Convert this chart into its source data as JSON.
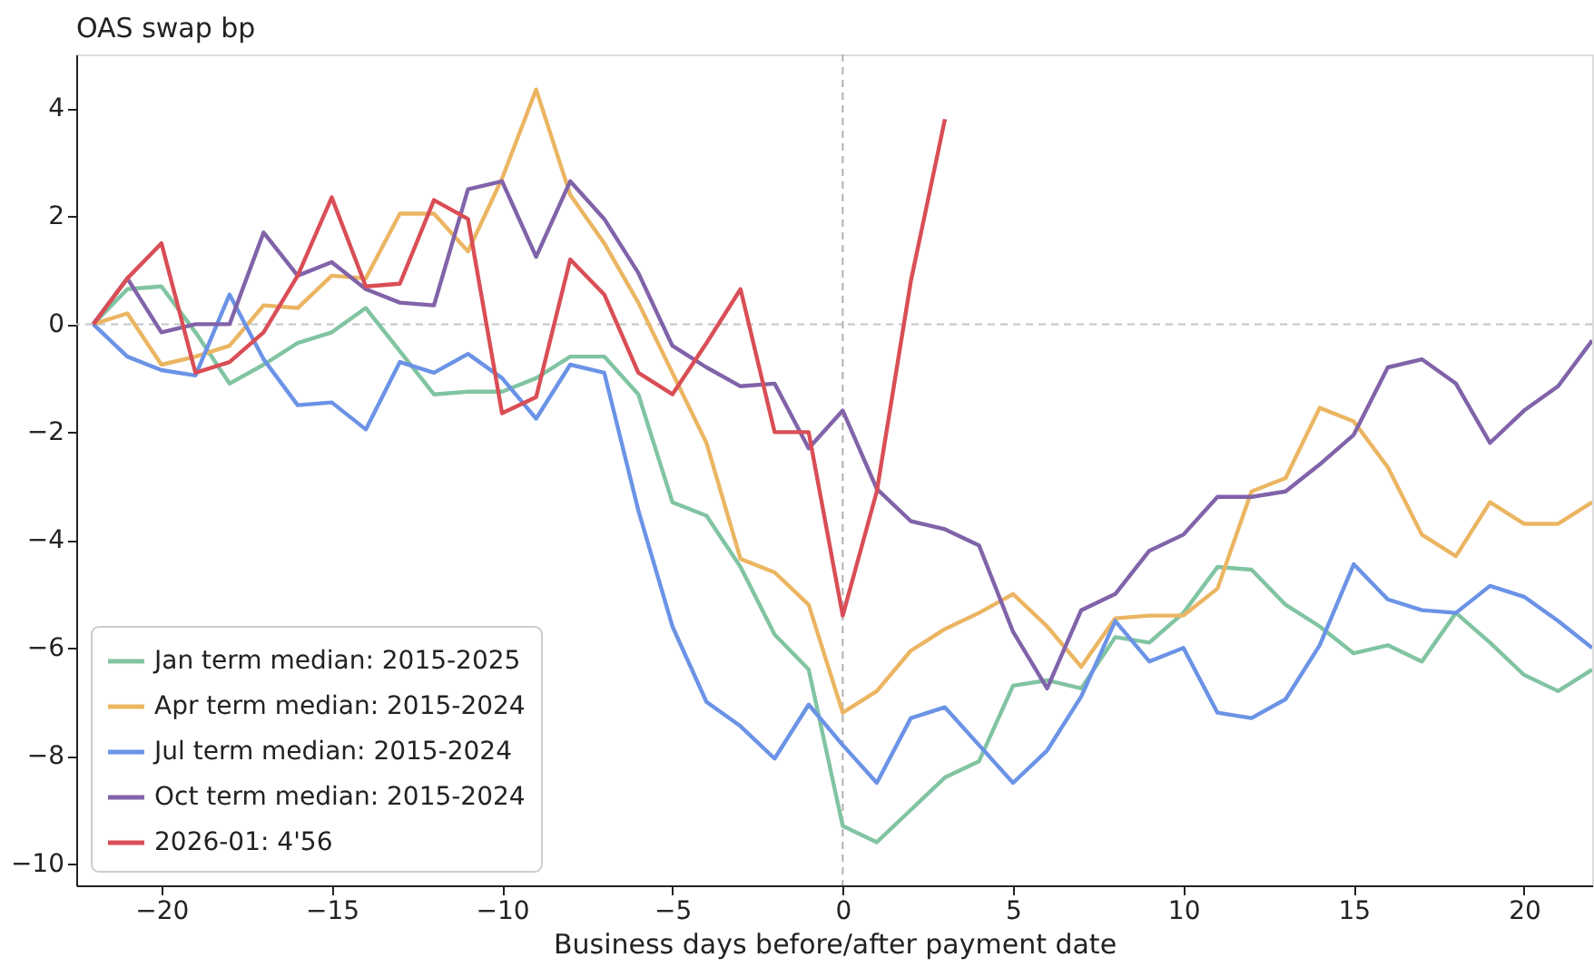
{
  "chart_data": {
    "type": "line",
    "title": "OAS swap bp",
    "xlabel": "Business days before/after payment date",
    "x": [
      -22,
      -21,
      -20,
      -19,
      -18,
      -17,
      -16,
      -15,
      -14,
      -13,
      -12,
      -11,
      -10,
      -9,
      -8,
      -7,
      -6,
      -5,
      -4,
      -3,
      -2,
      -1,
      0,
      1,
      2,
      3,
      4,
      5,
      6,
      7,
      8,
      9,
      10,
      11,
      12,
      13,
      14,
      15,
      16,
      17,
      18,
      19,
      20,
      21,
      22
    ],
    "series": [
      {
        "name": "Jan term median: 2015-2025",
        "color": "#81c4a2",
        "values": [
          0,
          0.65,
          0.7,
          -0.15,
          -1.1,
          -0.75,
          -0.35,
          -0.15,
          0.3,
          -0.5,
          -1.3,
          -1.25,
          -1.25,
          -1.0,
          -0.6,
          -0.6,
          -1.3,
          -3.3,
          -3.55,
          -4.5,
          -5.75,
          -6.4,
          -9.3,
          -9.6,
          -9.0,
          -8.4,
          -8.1,
          -6.7,
          -6.6,
          -6.75,
          -5.8,
          -5.9,
          -5.35,
          -4.5,
          -4.55,
          -5.2,
          -5.6,
          -6.1,
          -5.95,
          -6.25,
          -5.35,
          -5.9,
          -6.5,
          -6.8,
          -6.4
        ]
      },
      {
        "name": "Apr term median: 2015-2024",
        "color": "#ebb562",
        "values": [
          0,
          0.2,
          -0.75,
          -0.6,
          -0.4,
          0.35,
          0.3,
          0.9,
          0.85,
          2.05,
          2.05,
          1.35,
          2.7,
          4.35,
          2.4,
          1.5,
          0.4,
          -0.9,
          -2.2,
          -4.35,
          -4.6,
          -5.2,
          -7.2,
          -6.8,
          -6.05,
          -5.65,
          -5.35,
          -5.0,
          -5.6,
          -6.35,
          -5.45,
          -5.4,
          -5.4,
          -4.9,
          -3.1,
          -2.85,
          -1.55,
          -1.8,
          -2.65,
          -3.9,
          -4.3,
          -3.3,
          -3.7,
          -3.7,
          -3.3
        ]
      },
      {
        "name": "Jul term median: 2015-2024",
        "color": "#6b93e6",
        "values": [
          0,
          -0.6,
          -0.85,
          -0.95,
          0.55,
          -0.65,
          -1.5,
          -1.45,
          -1.95,
          -0.7,
          -0.9,
          -0.55,
          -1.0,
          -1.75,
          -0.75,
          -0.9,
          -3.45,
          -5.6,
          -7.0,
          -7.45,
          -8.05,
          -7.05,
          -7.8,
          -8.5,
          -7.3,
          -7.1,
          -7.8,
          -8.5,
          -7.9,
          -6.9,
          -5.5,
          -6.25,
          -6.0,
          -7.2,
          -7.3,
          -6.95,
          -5.95,
          -4.45,
          -5.1,
          -5.3,
          -5.35,
          -4.85,
          -5.05,
          -5.5,
          -6.0
        ]
      },
      {
        "name": "Oct term median: 2015-2024",
        "color": "#8163a9",
        "values": [
          0,
          0.85,
          -0.15,
          0.0,
          0.0,
          1.7,
          0.9,
          1.15,
          0.65,
          0.4,
          0.35,
          2.5,
          2.65,
          1.25,
          2.65,
          1.95,
          0.95,
          -0.4,
          -0.8,
          -1.15,
          -1.1,
          -2.3,
          -1.6,
          -3.05,
          -3.65,
          -3.8,
          -4.1,
          -5.7,
          -6.75,
          -5.3,
          -5.0,
          -4.2,
          -3.9,
          -3.2,
          -3.2,
          -3.1,
          -2.6,
          -2.05,
          -0.8,
          -0.65,
          -1.1,
          -2.2,
          -1.6,
          -1.15,
          -0.3
        ]
      },
      {
        "name": "2026-01: 4'56",
        "color": "#d94e56",
        "x": [
          -22,
          -21,
          -20,
          -19,
          -18,
          -17,
          -16,
          -15,
          -14,
          -13,
          -12,
          -11,
          -10,
          -9,
          -8,
          -7,
          -6,
          -5,
          -4,
          -3,
          -2,
          -1,
          0,
          1,
          2,
          3
        ],
        "values": [
          0,
          0.85,
          1.5,
          -0.9,
          -0.7,
          -0.15,
          0.9,
          2.35,
          0.7,
          0.75,
          2.3,
          1.95,
          -1.65,
          -1.35,
          1.2,
          0.55,
          -0.9,
          -1.3,
          -0.35,
          0.65,
          -2.0,
          -2.0,
          -5.4,
          -3.1,
          0.8,
          3.8
        ]
      }
    ],
    "xlim": [
      -22.5,
      22
    ],
    "xticks": [
      -20,
      -15,
      -10,
      -5,
      0,
      5,
      10,
      15,
      20
    ],
    "ylim": [
      -10.4,
      5.0
    ],
    "yticks": [
      -10,
      -8,
      -6,
      -4,
      -2,
      0,
      2,
      4
    ],
    "ref_lines": [
      {
        "axis": "x",
        "value": 0,
        "color": "#b0b0b0",
        "line_style": "dashed"
      },
      {
        "axis": "y",
        "value": 0,
        "color": "#c4c4c4",
        "line_style": "dashed"
      }
    ],
    "grid": false,
    "legend": "bottom left",
    "line_style": "solid",
    "marker": "none"
  }
}
